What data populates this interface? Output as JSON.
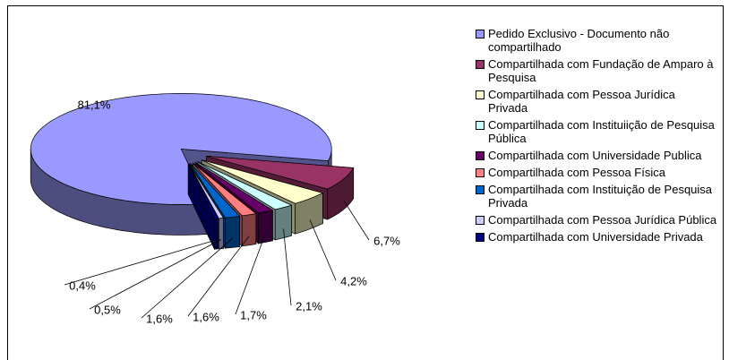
{
  "chart_data": {
    "type": "pie3d",
    "categories": [
      "Pedido Exclusivo - Documento não compartilhado",
      "Compartilhada com Fundação de Amparo à Pesquisa",
      "Compartilhada com Pessoa Jurídica Privada",
      "Compartilhada com Instituiição de Pesquisa Pública",
      "Compartilhada com Universidade Publica",
      "Compartilhada com Pessoa Física",
      "Compartilhada com Instituição de Pesquisa Privada",
      "Compartilhada com Pessoa Jurídica Pública",
      "Compartilhada com Universidade Privada"
    ],
    "values": [
      81.1,
      6.7,
      4.2,
      2.1,
      1.7,
      1.6,
      1.6,
      0.5,
      0.4
    ],
    "value_labels": [
      "81,1%",
      "6,7%",
      "4,2%",
      "2,1%",
      "1,7%",
      "1,6%",
      "1,6%",
      "0,5%",
      "0,4%"
    ],
    "colors": [
      "#9999ff",
      "#993366",
      "#ffffcc",
      "#ccffff",
      "#660066",
      "#ff8080",
      "#0066cc",
      "#ccccff",
      "#000080"
    ],
    "legend": "right"
  }
}
